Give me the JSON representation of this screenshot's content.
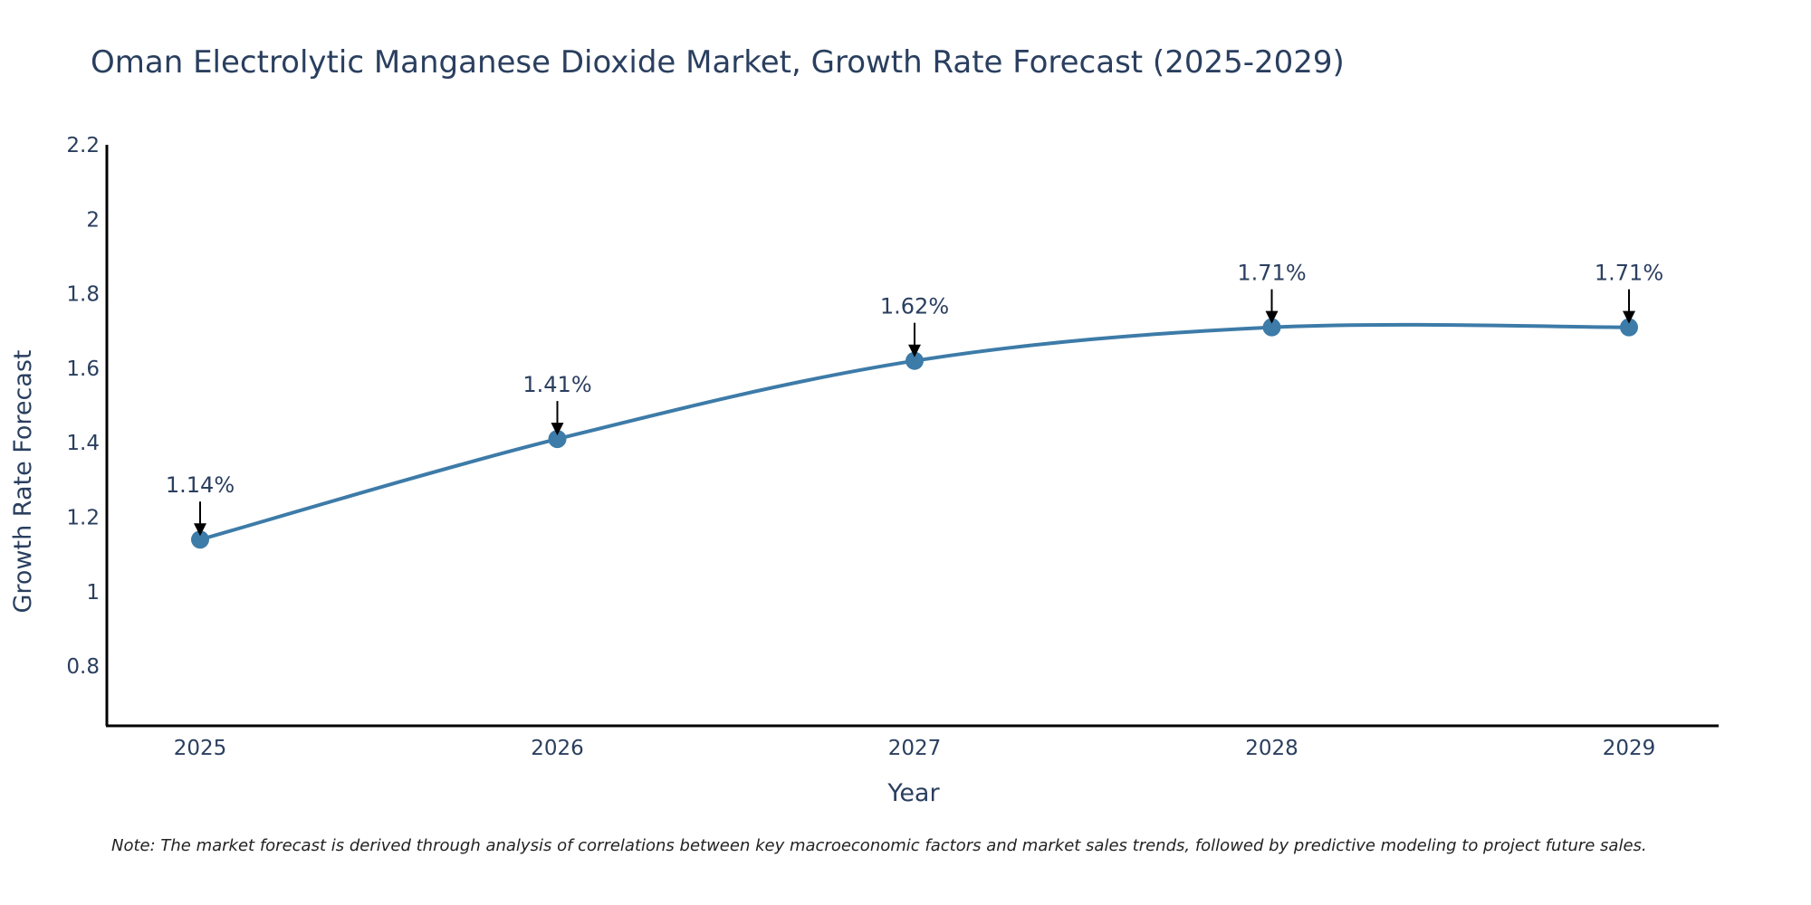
{
  "chart_data": {
    "type": "line",
    "title": "Oman Electrolytic Manganese Dioxide Market, Growth Rate Forecast (2025-2029)",
    "xlabel": "Year",
    "ylabel": "Growth Rate Forecast",
    "x": [
      "2025",
      "2026",
      "2027",
      "2028",
      "2029"
    ],
    "values": [
      1.14,
      1.41,
      1.62,
      1.71,
      1.71
    ],
    "data_labels": [
      "1.14%",
      "1.41%",
      "1.62%",
      "1.71%",
      "1.71%"
    ],
    "yticks": [
      0.8,
      1,
      1.2,
      1.4,
      1.6,
      1.8,
      2,
      2.2
    ],
    "ytick_labels": [
      "0.8",
      "1",
      "1.2",
      "1.4",
      "1.6",
      "1.8",
      "2",
      "2.2"
    ],
    "ylim": [
      0.64,
      2.2
    ],
    "grid": false,
    "line_color": "#3d7ba8",
    "note": "Note: The market forecast is derived through analysis of correlations between key macroeconomic factors and market sales trends, followed by predictive modeling to project future sales."
  }
}
